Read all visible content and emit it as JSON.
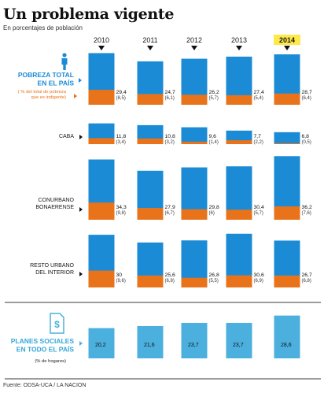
{
  "title": "Un problema vigente",
  "subtitle": "En porcentajes de población",
  "source": "Fuente: ODSA-UCA / LA NACION",
  "colors": {
    "pobreza": "#1b8bd6",
    "indigencia": "#e8731a",
    "planes": "#4bb0de",
    "highlight": "#ffe84a",
    "divider": "#3a3a3a"
  },
  "icons": [
    "person-icon",
    "document-dollar-icon",
    "arrow-right-icon",
    "arrow-down-icon"
  ],
  "chart_data": {
    "type": "bar",
    "categories": [
      "2010",
      "2011",
      "2012",
      "2013",
      "2014"
    ],
    "highlighted_category": "2014",
    "panels": [
      {
        "id": "total",
        "label_lines": [
          "POBREZA TOTAL",
          "EN EL PAÍS"
        ],
        "sublabel_lines": [
          "( % del total de pobreza",
          "que es indigente)"
        ],
        "series": [
          {
            "name": "POBREZA TOTAL EN EL PAÍS",
            "values": [
              29.4,
              24.7,
              26.2,
              27.4,
              28.7
            ]
          },
          {
            "name": "% del total de pobreza que es indigente",
            "values": [
              8.5,
              6.1,
              5.7,
              5.4,
              6.4
            ]
          }
        ],
        "value_labels": [
          "29,4",
          "24,7",
          "26,2",
          "27,4",
          "28,7"
        ],
        "sub_value_labels": [
          "(8,5)",
          "(6,1)",
          "(5,7)",
          "(5,4)",
          "(6,4)"
        ]
      },
      {
        "id": "caba",
        "label_lines": [
          "CABA"
        ],
        "series": [
          {
            "name": "Pobreza",
            "values": [
              11.8,
              10.8,
              9.6,
              7.7,
              6.8
            ]
          },
          {
            "name": "Indigencia",
            "values": [
              3.4,
              3.2,
              1.4,
              2.2,
              0.5
            ]
          }
        ],
        "value_labels": [
          "11,8",
          "10,8",
          "9,6",
          "7,7",
          "6,8"
        ],
        "sub_value_labels": [
          "(3,4)",
          "(3,2)",
          "(1,4)",
          "(2,2)",
          "(0,5)"
        ]
      },
      {
        "id": "conurbano",
        "label_lines": [
          "CONURBANO",
          "BONAERENSE"
        ],
        "series": [
          {
            "name": "Pobreza",
            "values": [
              34.3,
              27.9,
              29.8,
              30.4,
              36.2
            ]
          },
          {
            "name": "Indigencia",
            "values": [
              9.8,
              6.7,
              6,
              5.7,
              7.6
            ]
          }
        ],
        "value_labels": [
          "34,3",
          "27,9",
          "29,8",
          "30,4",
          "36,2"
        ],
        "sub_value_labels": [
          "(9,8)",
          "(6,7)",
          "(6)",
          "(5,7)",
          "(7,6)"
        ]
      },
      {
        "id": "resto",
        "label_lines": [
          "RESTO URBANO",
          "DEL INTERIOR"
        ],
        "series": [
          {
            "name": "Pobreza",
            "values": [
              30,
              25.6,
              26.8,
              30.6,
              26.7
            ]
          },
          {
            "name": "Indigencia",
            "values": [
              9.6,
              6.8,
              5.5,
              6.9,
              6.8
            ]
          }
        ],
        "value_labels": [
          "30",
          "25,6",
          "26,8",
          "30,6",
          "26,7"
        ],
        "sub_value_labels": [
          "(9,6)",
          "(6,8)",
          "(5,5)",
          "(6,9)",
          "(6,8)"
        ]
      },
      {
        "id": "planes",
        "label_lines": [
          "PLANES SOCIALES",
          "EN TODO EL PAÍS"
        ],
        "sublabel_lines": [
          "(% de hogares)"
        ],
        "series": [
          {
            "name": "PLANES SOCIALES EN TODO EL PAÍS",
            "values": [
              20.2,
              21.6,
              23.7,
              23.7,
              28.6
            ]
          }
        ],
        "value_labels": [
          "20,2",
          "21,6",
          "23,7",
          "23,7",
          "28,6"
        ]
      }
    ]
  }
}
